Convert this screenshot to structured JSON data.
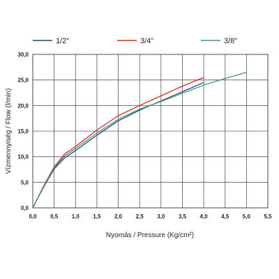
{
  "chart_data": {
    "type": "line",
    "title": "",
    "xlabel": "Nyomás / Pressure (Kg/cm²)",
    "ylabel": "Vízmennyiség / Flow (l/min)",
    "xlim": [
      0,
      5.5
    ],
    "ylim": [
      0,
      30
    ],
    "x_ticks": [
      "0,0",
      "0,5",
      "1,0",
      "1,5",
      "2,0",
      "2,5",
      "3,0",
      "3,5",
      "4,0",
      "4,5",
      "5,0",
      "5,5"
    ],
    "y_ticks": [
      "0,0",
      "5,0",
      "10,0",
      "15,0",
      "20,0",
      "25,0",
      "30,0"
    ],
    "grid": true,
    "legend_position": "top",
    "series": [
      {
        "name": "1/2\"",
        "color": "#2b3f8c",
        "x": [
          0,
          0.25,
          0.5,
          0.75,
          1.0,
          1.5,
          2.0,
          2.5,
          3.0,
          3.5,
          4.0
        ],
        "y": [
          0,
          4.0,
          7.6,
          9.8,
          11.2,
          14.2,
          17.0,
          19.1,
          20.9,
          22.7,
          24.5
        ]
      },
      {
        "name": "3/4\"",
        "color": "#d42a2a",
        "x": [
          0,
          0.25,
          0.5,
          0.75,
          1.0,
          1.5,
          2.0,
          2.5,
          3.0,
          3.5,
          4.0
        ],
        "y": [
          0,
          4.2,
          8.0,
          10.6,
          12.0,
          15.2,
          18.0,
          20.0,
          21.9,
          23.8,
          25.5
        ]
      },
      {
        "name": "3/8\"",
        "color": "#3f9a6e",
        "x": [
          0,
          0.25,
          0.5,
          0.75,
          1.0,
          1.5,
          2.0,
          2.5,
          3.0,
          3.5,
          4.0,
          4.5,
          5.0
        ],
        "y": [
          0,
          4.1,
          7.8,
          10.2,
          11.6,
          14.6,
          17.3,
          19.3,
          20.8,
          22.4,
          24.0,
          25.3,
          26.5
        ]
      }
    ]
  }
}
